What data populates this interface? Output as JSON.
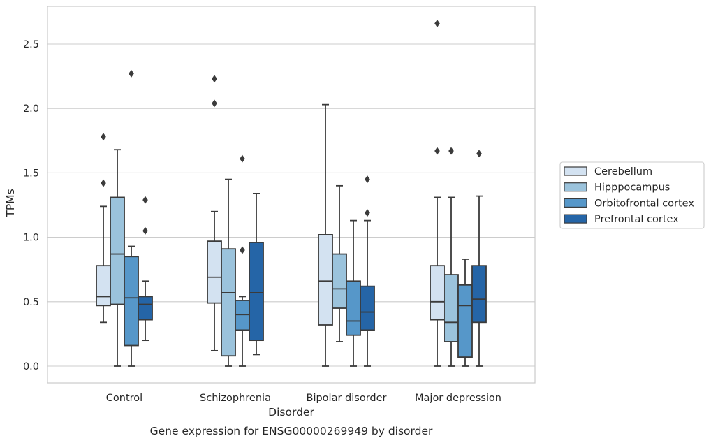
{
  "chart_data": {
    "type": "box",
    "caption": "Gene expression for ENSG00000269949 by disorder",
    "xlabel": "Disorder",
    "ylabel": "TPMs",
    "ylim": [
      -0.13,
      2.8
    ],
    "yticks": [
      0.0,
      0.5,
      1.0,
      1.5,
      2.0,
      2.5
    ],
    "ytick_labels": [
      "0.0",
      "0.5",
      "1.0",
      "1.5",
      "2.0",
      "2.5"
    ],
    "grid": "horizontal",
    "legend_position": "right",
    "categories": [
      "Control",
      "Schizophrenia",
      "Bipolar disorder",
      "Major depression"
    ],
    "series": [
      {
        "name": "Cerebellum",
        "color": "#d3e2f1",
        "boxes": [
          {
            "whisker_low": 0.34,
            "q1": 0.47,
            "median": 0.54,
            "q3": 0.78,
            "whisker_high": 1.24,
            "outliers": [
              1.42,
              1.78
            ]
          },
          {
            "whisker_low": 0.12,
            "q1": 0.49,
            "median": 0.69,
            "q3": 0.97,
            "whisker_high": 1.2,
            "outliers": [
              2.04,
              2.23
            ]
          },
          {
            "whisker_low": 0.0,
            "q1": 0.32,
            "median": 0.66,
            "q3": 1.02,
            "whisker_high": 2.03,
            "outliers": []
          },
          {
            "whisker_low": 0.0,
            "q1": 0.36,
            "median": 0.5,
            "q3": 0.78,
            "whisker_high": 1.31,
            "outliers": [
              1.67,
              2.66
            ]
          }
        ]
      },
      {
        "name": "Hipppocampus",
        "color": "#9bc3dc",
        "boxes": [
          {
            "whisker_low": 0.0,
            "q1": 0.48,
            "median": 0.87,
            "q3": 1.31,
            "whisker_high": 1.68,
            "outliers": []
          },
          {
            "whisker_low": 0.0,
            "q1": 0.08,
            "median": 0.57,
            "q3": 0.91,
            "whisker_high": 1.45,
            "outliers": []
          },
          {
            "whisker_low": 0.19,
            "q1": 0.45,
            "median": 0.6,
            "q3": 0.87,
            "whisker_high": 1.4,
            "outliers": []
          },
          {
            "whisker_low": 0.0,
            "q1": 0.19,
            "median": 0.34,
            "q3": 0.71,
            "whisker_high": 1.31,
            "outliers": [
              1.67
            ]
          }
        ]
      },
      {
        "name": "Orbitofrontal cortex",
        "color": "#5697c9",
        "boxes": [
          {
            "whisker_low": 0.0,
            "q1": 0.16,
            "median": 0.53,
            "q3": 0.85,
            "whisker_high": 0.93,
            "outliers": [
              2.27
            ]
          },
          {
            "whisker_low": 0.0,
            "q1": 0.28,
            "median": 0.4,
            "q3": 0.51,
            "whisker_high": 0.54,
            "outliers": [
              0.9,
              1.61
            ]
          },
          {
            "whisker_low": 0.0,
            "q1": 0.24,
            "median": 0.35,
            "q3": 0.66,
            "whisker_high": 1.13,
            "outliers": []
          },
          {
            "whisker_low": 0.0,
            "q1": 0.07,
            "median": 0.47,
            "q3": 0.63,
            "whisker_high": 0.83,
            "outliers": []
          }
        ]
      },
      {
        "name": "Prefrontal cortex",
        "color": "#2565a7",
        "boxes": [
          {
            "whisker_low": 0.2,
            "q1": 0.36,
            "median": 0.48,
            "q3": 0.54,
            "whisker_high": 0.66,
            "outliers": [
              1.05,
              1.29
            ]
          },
          {
            "whisker_low": 0.09,
            "q1": 0.2,
            "median": 0.57,
            "q3": 0.96,
            "whisker_high": 1.34,
            "outliers": []
          },
          {
            "whisker_low": 0.0,
            "q1": 0.28,
            "median": 0.42,
            "q3": 0.62,
            "whisker_high": 1.13,
            "outliers": [
              1.19,
              1.45
            ]
          },
          {
            "whisker_low": 0.0,
            "q1": 0.34,
            "median": 0.52,
            "q3": 0.78,
            "whisker_high": 1.32,
            "outliers": [
              1.65
            ]
          }
        ]
      }
    ]
  }
}
